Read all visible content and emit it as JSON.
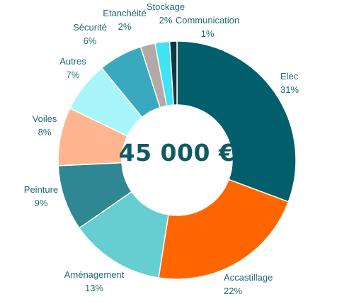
{
  "chart_data": {
    "type": "pie",
    "variant": "donut",
    "center_label": "45 000 €",
    "slices": [
      {
        "name": "Elec",
        "percent_label": "31%",
        "value": 31,
        "color": "#005f6b"
      },
      {
        "name": "Accastillage",
        "percent_label": "22%",
        "value": 22,
        "color": "#ff6600"
      },
      {
        "name": "Aménagement",
        "percent_label": "13%",
        "value": 13,
        "color": "#66cdd1"
      },
      {
        "name": "Peinture",
        "percent_label": "9%",
        "value": 9,
        "color": "#2e8793"
      },
      {
        "name": "Voiles",
        "percent_label": "8%",
        "value": 8,
        "color": "#ffb690"
      },
      {
        "name": "Autres",
        "percent_label": "7%",
        "value": 7,
        "color": "#a8f6fb"
      },
      {
        "name": "Sécurité",
        "percent_label": "6%",
        "value": 6,
        "color": "#3aa9c0"
      },
      {
        "name": "Etanchéité",
        "percent_label": "2%",
        "value": 2,
        "color": "#b3aaa7"
      },
      {
        "name": "Stockage",
        "percent_label": "2%",
        "value": 2,
        "color": "#3fe3f2"
      },
      {
        "name": "Communication",
        "percent_label": "1%",
        "value": 1,
        "color": "#103840"
      }
    ],
    "label_color": "#1f6a78"
  }
}
